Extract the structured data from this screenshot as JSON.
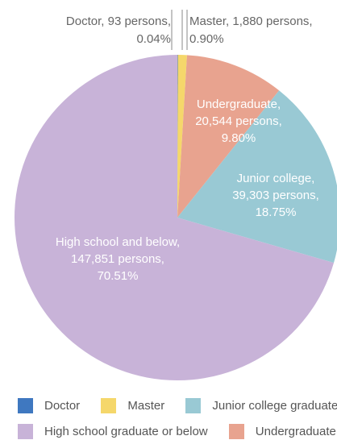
{
  "chart_data": {
    "type": "pie",
    "title": "",
    "slices": [
      {
        "key": "doctor",
        "name": "Doctor",
        "persons": 93,
        "percent": 0.04,
        "color": "#3f78c0",
        "label_lines": [
          "Doctor, 93 persons,",
          "0.04%"
        ]
      },
      {
        "key": "master",
        "name": "Master",
        "persons": 1880,
        "percent": 0.9,
        "color": "#f5d76b",
        "label_lines": [
          "Master, 1,880 persons,",
          "0.90%"
        ]
      },
      {
        "key": "undergraduate",
        "name": "Undergraduate",
        "persons": 20544,
        "percent": 9.8,
        "color": "#e8a38f",
        "label_lines": [
          "Undergraduate,",
          "20,544 persons,",
          "9.80%"
        ]
      },
      {
        "key": "junior_college",
        "name": "Junior college graduate",
        "persons": 39303,
        "percent": 18.75,
        "color": "#99c9d4",
        "label_lines": [
          "Junior college,",
          "39,303 persons,",
          "18.75%"
        ]
      },
      {
        "key": "high_school",
        "name": "High school graduate or below",
        "persons": 147851,
        "percent": 70.51,
        "color": "#c8b3d8",
        "label_lines": [
          "High school and below,",
          "147,851 persons,",
          "70.51%"
        ]
      }
    ],
    "legend": {
      "placement": "bottom",
      "rows": [
        [
          "doctor",
          "master",
          "junior_college"
        ],
        [
          "high_school",
          "undergraduate"
        ]
      ]
    }
  }
}
